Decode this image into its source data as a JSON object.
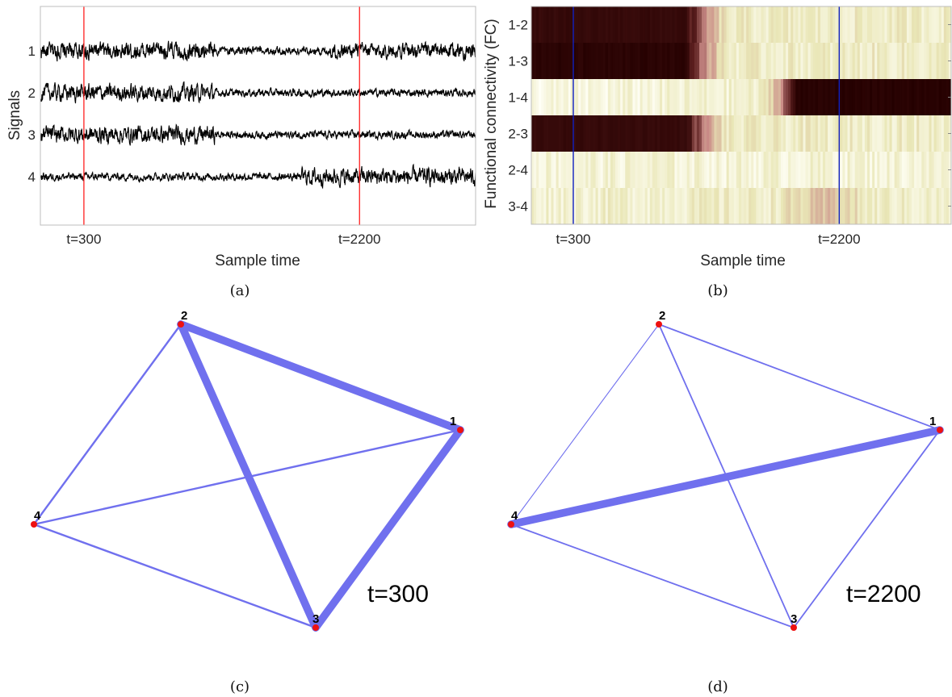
{
  "colors": {
    "signal": "#000000",
    "marker_a": "#ff2020",
    "marker_b": "#1020c0",
    "edge": "#7070ee",
    "node": "#ee1111",
    "heat_low": "#fffff6",
    "heat_mid": "#e9e6b6",
    "heat_pink": "#c98a86",
    "heat_high": "#240000"
  },
  "panels": {
    "a": {
      "caption": "(a)",
      "xlabel": "Sample time",
      "ylabel": "Signals"
    },
    "b": {
      "caption": "(b)",
      "xlabel": "Sample time",
      "ylabel": "Functional connectivity (FC)"
    },
    "c": {
      "caption": "(c)",
      "time_label": "t=300"
    },
    "d": {
      "caption": "(d)",
      "time_label": "t=2200"
    }
  },
  "chart_data": [
    {
      "type": "line",
      "panel": "a",
      "xlabel": "Sample time",
      "ylabel": "Signals",
      "x_ticks": [
        "t=300",
        "t=2200"
      ],
      "x_tick_values": [
        300,
        2200
      ],
      "xlim": [
        0,
        3000
      ],
      "y_tick_labels": [
        "1",
        "2",
        "3",
        "4"
      ],
      "vertical_markers": [
        300,
        2200
      ],
      "series": [
        {
          "name": "1",
          "amplitude_by_segment": [
            {
              "range": [
                0,
                1200
              ],
              "level": 1.0
            },
            {
              "range": [
                1200,
                2000
              ],
              "level": 0.5
            },
            {
              "range": [
                2000,
                3000
              ],
              "level": 0.9
            }
          ]
        },
        {
          "name": "2",
          "amplitude_by_segment": [
            {
              "range": [
                0,
                1200
              ],
              "level": 1.0
            },
            {
              "range": [
                1200,
                3000
              ],
              "level": 0.45
            }
          ]
        },
        {
          "name": "3",
          "amplitude_by_segment": [
            {
              "range": [
                0,
                1200
              ],
              "level": 1.0
            },
            {
              "range": [
                1200,
                3000
              ],
              "level": 0.45
            }
          ]
        },
        {
          "name": "4",
          "amplitude_by_segment": [
            {
              "range": [
                0,
                1800
              ],
              "level": 0.45
            },
            {
              "range": [
                1800,
                3000
              ],
              "level": 1.0
            }
          ]
        }
      ],
      "grid": false
    },
    {
      "type": "heatmap",
      "panel": "b",
      "xlabel": "Sample time",
      "ylabel": "Functional connectivity (FC)",
      "x_ticks": [
        "t=300",
        "t=2200"
      ],
      "x_tick_values": [
        300,
        2200
      ],
      "xlim": [
        0,
        3000
      ],
      "rows": [
        "1-2",
        "1-3",
        "1-4",
        "2-3",
        "2-4",
        "3-4"
      ],
      "vertical_markers": [
        300,
        2200
      ],
      "intensity_profile": [
        {
          "row": "1-2",
          "points": [
            [
              0,
              0.92
            ],
            [
              1100,
              0.92
            ],
            [
              1250,
              0.45
            ],
            [
              1400,
              0.15
            ],
            [
              3000,
              0.15
            ]
          ]
        },
        {
          "row": "1-3",
          "points": [
            [
              0,
              0.97
            ],
            [
              1100,
              0.97
            ],
            [
              1250,
              0.45
            ],
            [
              1400,
              0.15
            ],
            [
              3000,
              0.15
            ]
          ]
        },
        {
          "row": "1-4",
          "points": [
            [
              0,
              0.05
            ],
            [
              1650,
              0.12
            ],
            [
              1780,
              0.45
            ],
            [
              1900,
              0.98
            ],
            [
              3000,
              0.98
            ]
          ]
        },
        {
          "row": "2-3",
          "points": [
            [
              0,
              0.92
            ],
            [
              1100,
              0.92
            ],
            [
              1250,
              0.45
            ],
            [
              1400,
              0.15
            ],
            [
              3000,
              0.15
            ]
          ]
        },
        {
          "row": "2-4",
          "points": [
            [
              0,
              0.1
            ],
            [
              3000,
              0.1
            ]
          ]
        },
        {
          "row": "3-4",
          "points": [
            [
              0,
              0.12
            ],
            [
              1700,
              0.15
            ],
            [
              2150,
              0.32
            ],
            [
              2400,
              0.15
            ],
            [
              3000,
              0.12
            ]
          ]
        }
      ]
    },
    {
      "type": "network",
      "panel": "c",
      "label": "t=300",
      "nodes": [
        "1",
        "2",
        "3",
        "4"
      ],
      "edges": [
        {
          "source": "2",
          "target": "1",
          "weight": 0.9
        },
        {
          "source": "2",
          "target": "3",
          "weight": 0.9
        },
        {
          "source": "1",
          "target": "3",
          "weight": 0.9
        },
        {
          "source": "2",
          "target": "4",
          "weight": 0.18
        },
        {
          "source": "4",
          "target": "1",
          "weight": 0.18
        },
        {
          "source": "4",
          "target": "3",
          "weight": 0.18
        }
      ]
    },
    {
      "type": "network",
      "panel": "d",
      "label": "t=2200",
      "nodes": [
        "1",
        "2",
        "3",
        "4"
      ],
      "edges": [
        {
          "source": "4",
          "target": "1",
          "weight": 0.9
        },
        {
          "source": "2",
          "target": "1",
          "weight": 0.12
        },
        {
          "source": "2",
          "target": "3",
          "weight": 0.12
        },
        {
          "source": "2",
          "target": "4",
          "weight": 0.05
        },
        {
          "source": "1",
          "target": "3",
          "weight": 0.12
        },
        {
          "source": "4",
          "target": "3",
          "weight": 0.12
        }
      ]
    }
  ]
}
